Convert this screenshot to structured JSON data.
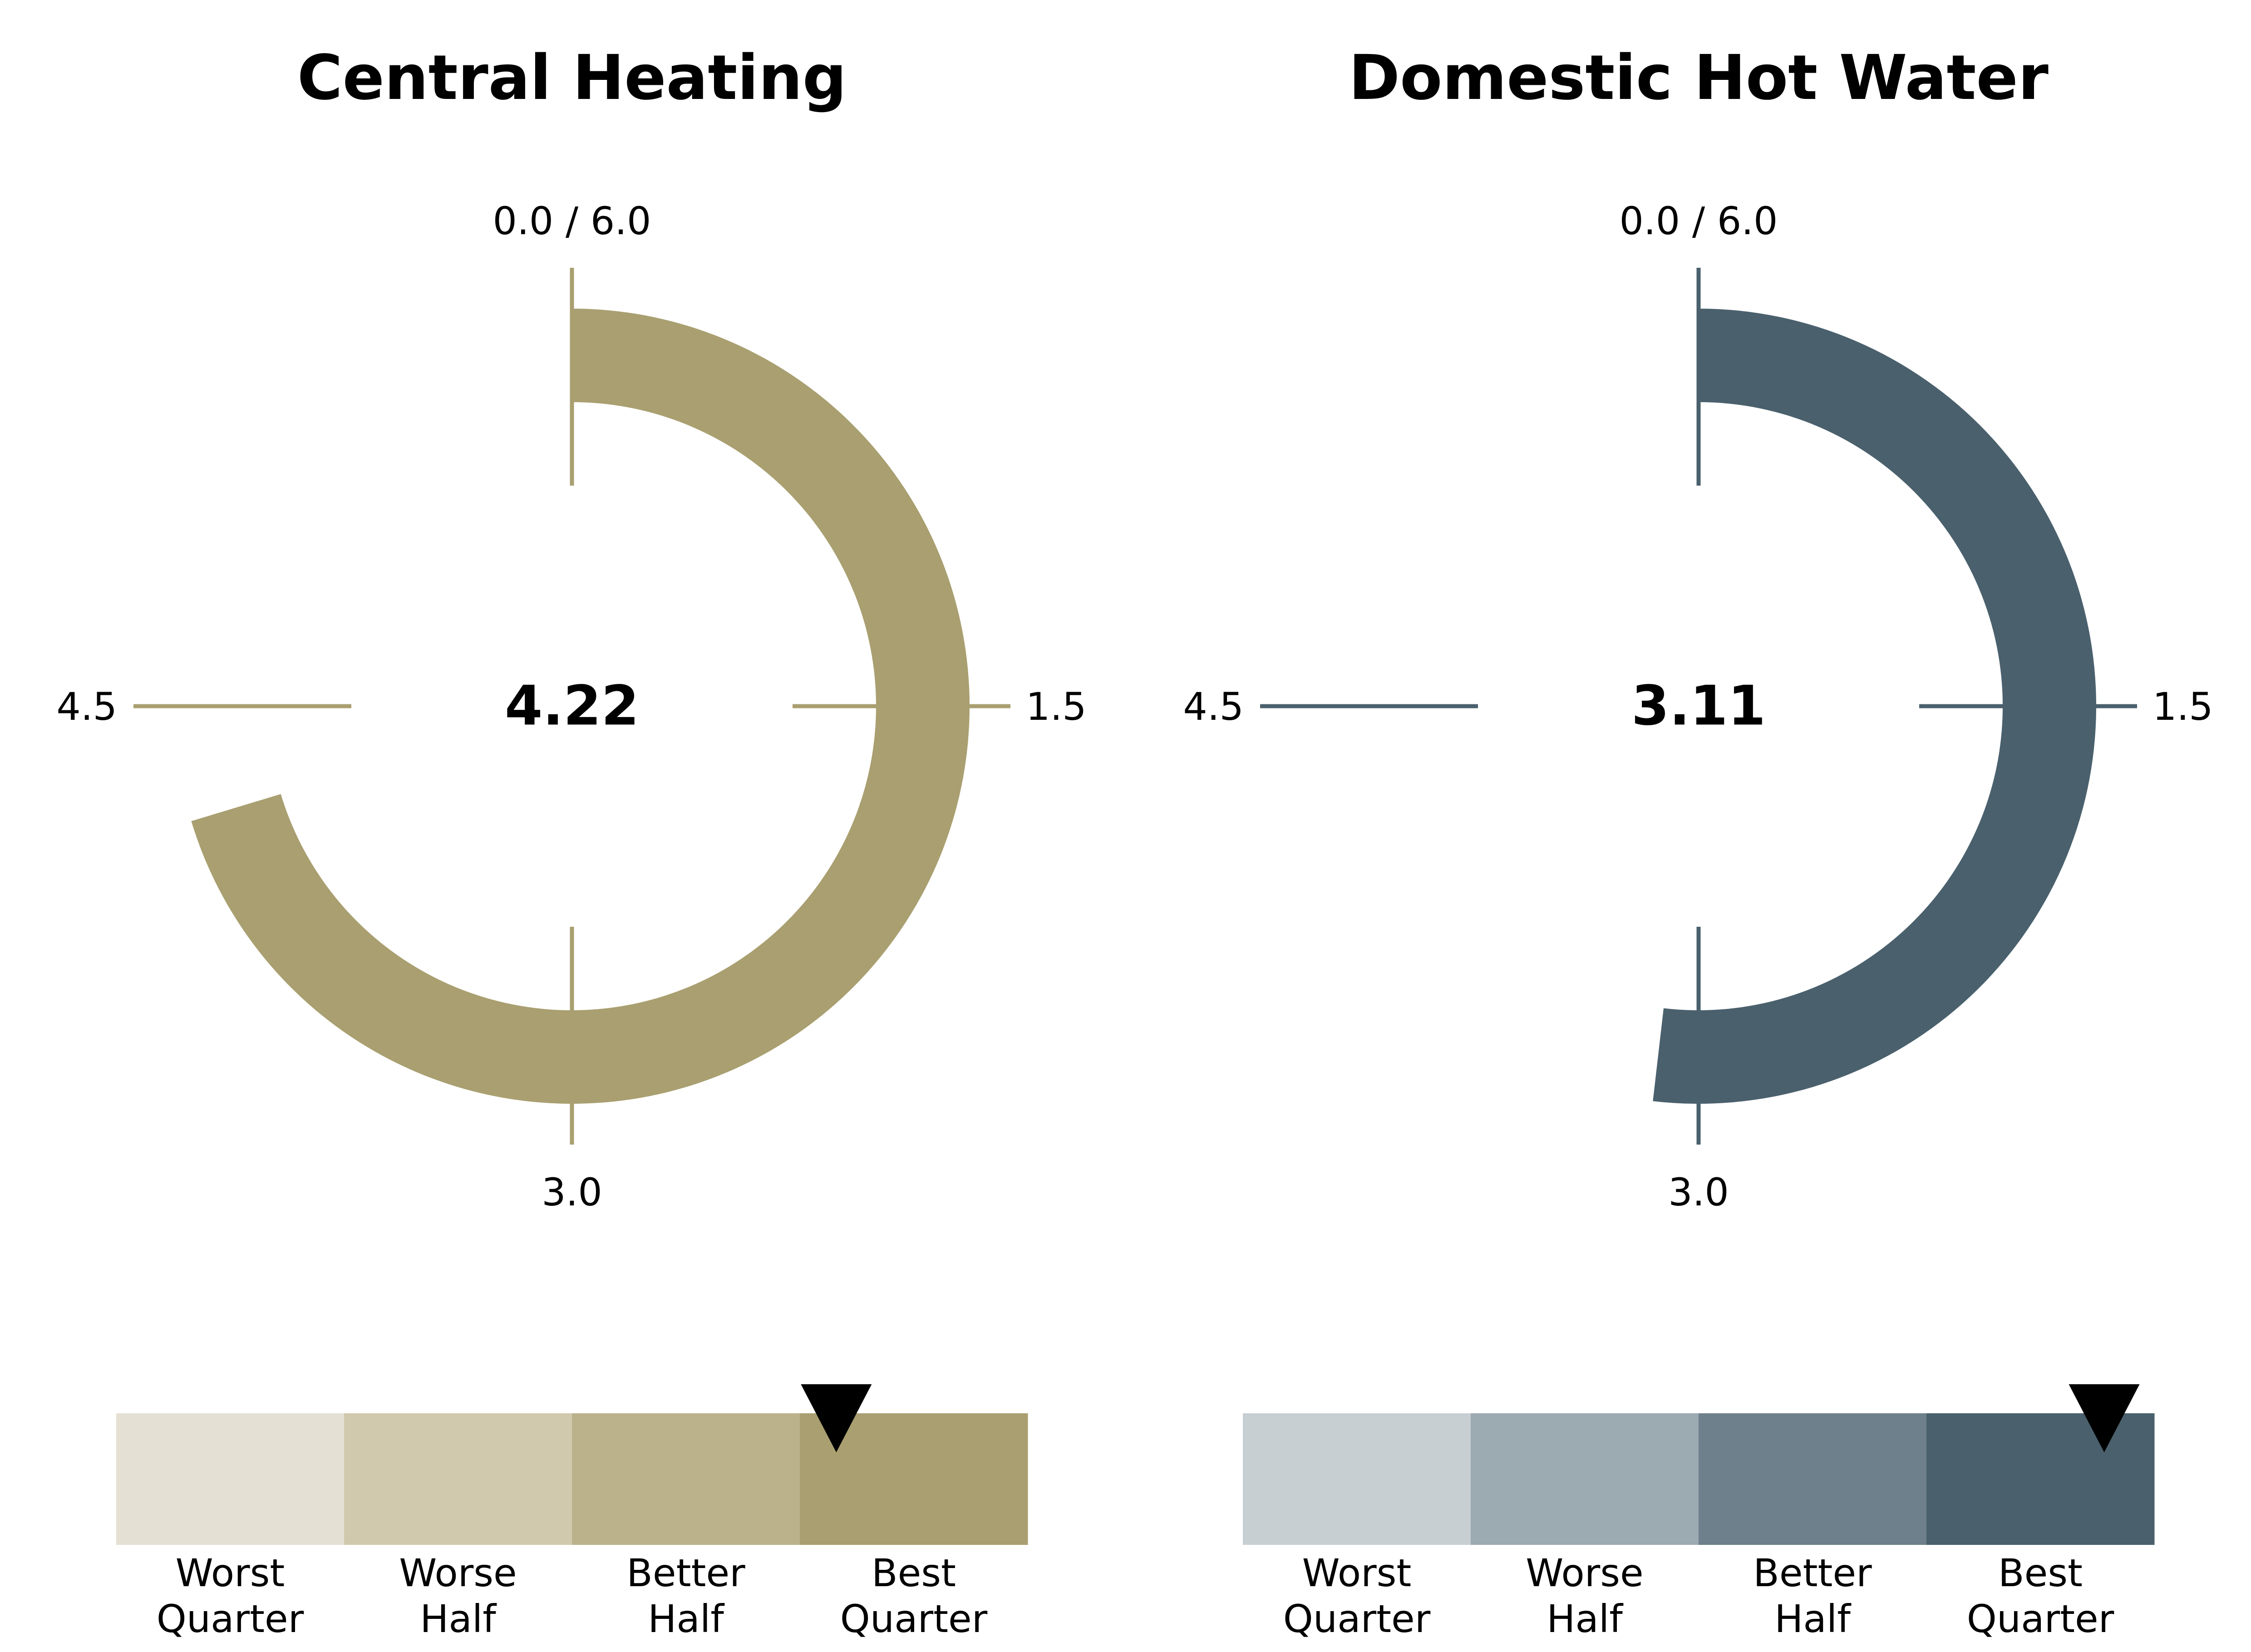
{
  "chart_data": [
    {
      "type": "gauge",
      "title": "Central Heating",
      "value": 4.22,
      "value_label": "4.22",
      "range": [
        0,
        6
      ],
      "direction": "clockwise, starting at top",
      "tick_labels": {
        "top": "0.0 / 6.0",
        "right": "1.5",
        "bottom": "3.0",
        "left": "4.5"
      },
      "color": "#a99f70",
      "quartile_bar": {
        "bands": [
          {
            "line1": "Worst",
            "line2": "Quarter",
            "color": "#e4e0d3"
          },
          {
            "line1": "Worse",
            "line2": "Half",
            "color": "#d0c9ae"
          },
          {
            "line1": "Better",
            "line2": "Half",
            "color": "#bbb28c"
          },
          {
            "line1": "Best",
            "line2": "Quarter",
            "color": "#a99f70"
          }
        ],
        "marker_position": 0.79
      }
    },
    {
      "type": "gauge",
      "title": "Domestic Hot Water",
      "value": 3.11,
      "value_label": "3.11",
      "range": [
        0,
        6
      ],
      "direction": "clockwise, starting at top",
      "tick_labels": {
        "top": "0.0 / 6.0",
        "right": "1.5",
        "bottom": "3.0",
        "left": "4.5"
      },
      "color": "#4a606d",
      "quartile_bar": {
        "bands": [
          {
            "line1": "Worst",
            "line2": "Quarter",
            "color": "#c8cfd3"
          },
          {
            "line1": "Worse",
            "line2": "Half",
            "color": "#9caab1"
          },
          {
            "line1": "Better",
            "line2": "Half",
            "color": "#6e808b"
          },
          {
            "line1": "Best",
            "line2": "Quarter",
            "color": "#4a606d"
          }
        ],
        "marker_position": 0.945
      }
    }
  ]
}
